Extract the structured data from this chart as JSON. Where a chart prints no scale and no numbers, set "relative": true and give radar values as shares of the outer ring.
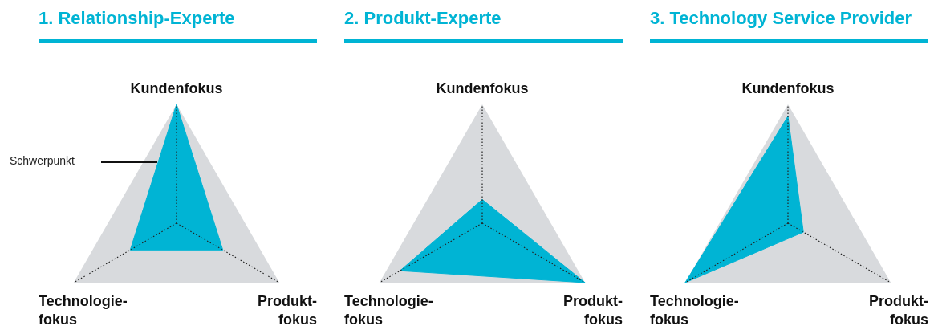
{
  "chart_data": [
    {
      "type": "radar",
      "title": "1. Relationship-Experte",
      "categories": [
        "Kundenfokus",
        "Produkt-\nfokus",
        "Technologie-\nfokus"
      ],
      "relative": true,
      "grid": true,
      "annotations": [
        "Schwerpunkt"
      ],
      "series": [
        {
          "color": "#00b4d4",
          "values": [
            1,
            0.45,
            0.45
          ]
        }
      ]
    },
    {
      "type": "radar",
      "title": "2. Produkt-Experte",
      "categories": [
        "Kundenfokus",
        "Produkt-\nfokus",
        "Technologie-\nfokus"
      ],
      "relative": true,
      "grid": true,
      "series": [
        {
          "color": "#00b4d4",
          "values": [
            0.2,
            1,
            0.8
          ]
        }
      ]
    },
    {
      "type": "radar",
      "title": "3. Technology Service Provider",
      "categories": [
        "Kundenfokus",
        "Produkt-\nfokus",
        "Technologie-\nfokus"
      ],
      "relative": true,
      "grid": true,
      "series": [
        {
          "color": "#00b4d4",
          "values": [
            0.9,
            0.15,
            1
          ]
        }
      ]
    }
  ]
}
